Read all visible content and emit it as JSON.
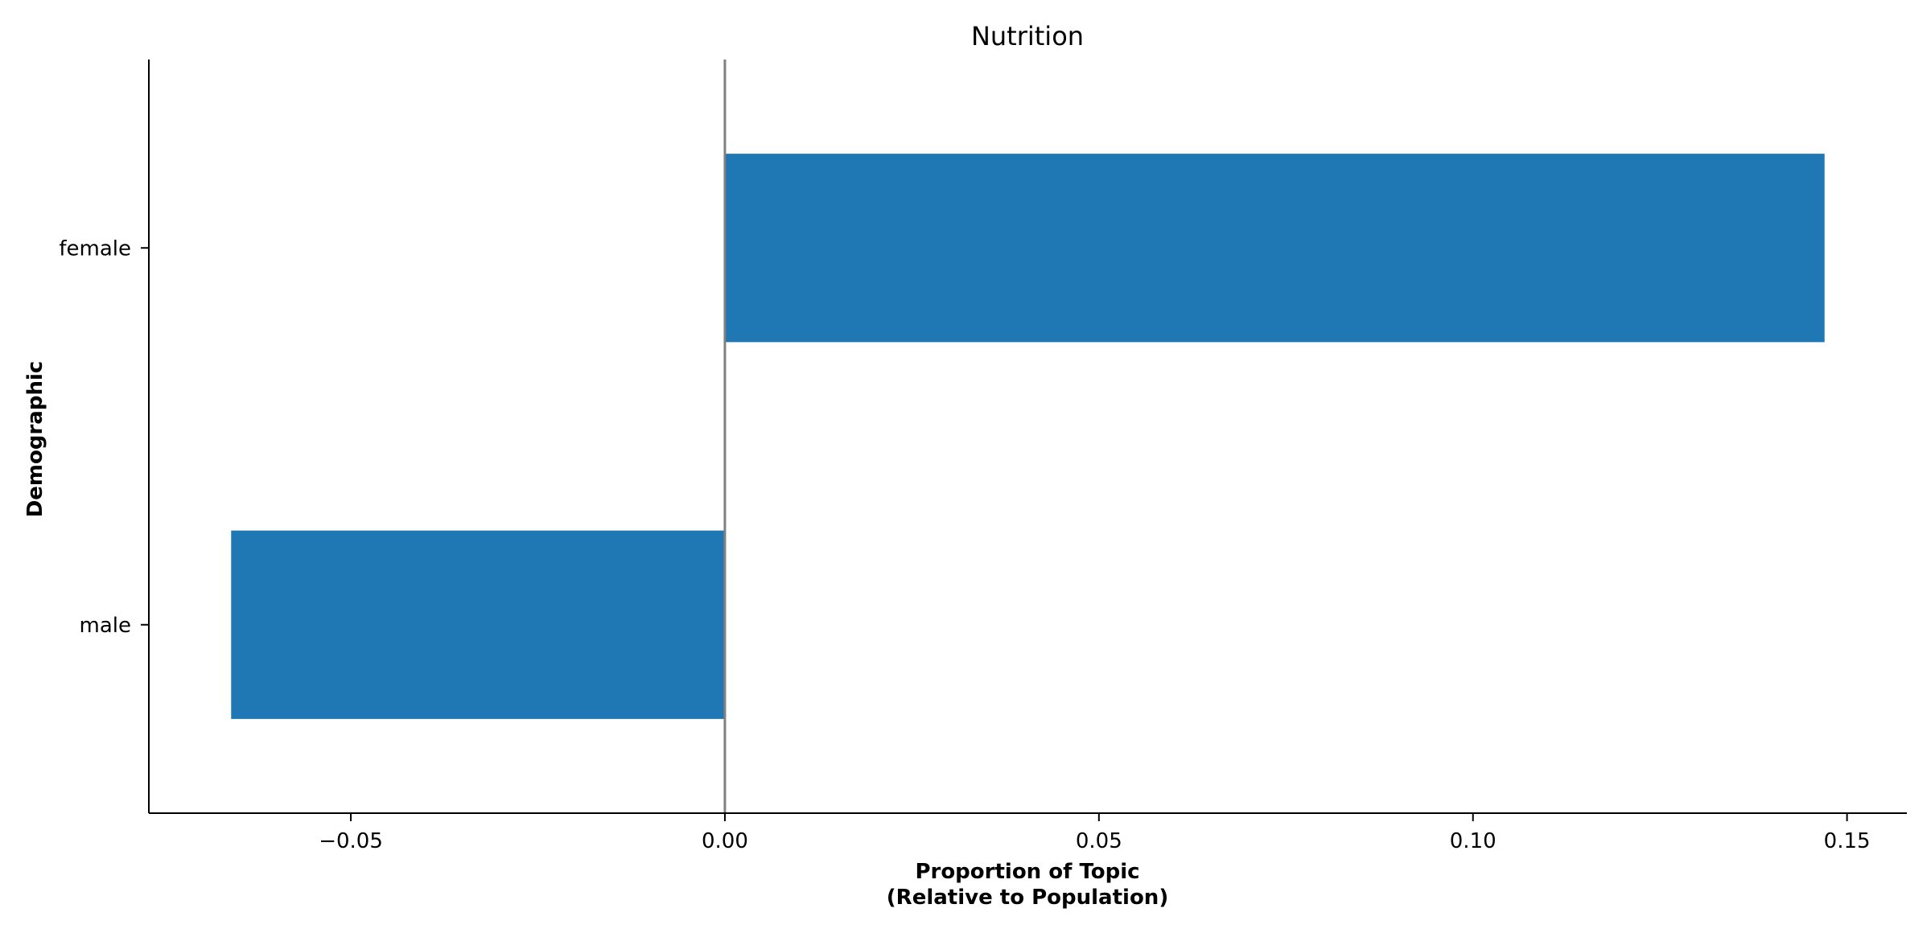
{
  "chart_data": {
    "type": "bar",
    "orientation": "horizontal",
    "title": "Nutrition",
    "xlabel_lines": [
      "Proportion of Topic",
      "(Relative to Population)"
    ],
    "ylabel": "Demographic",
    "categories": [
      "female",
      "male"
    ],
    "values": [
      0.147,
      -0.066
    ],
    "xlim": [
      -0.077,
      0.158
    ],
    "xticks": [
      -0.05,
      0.0,
      0.05,
      0.1,
      0.15
    ],
    "xtick_labels": [
      "−0.05",
      "0.00",
      "0.05",
      "0.10",
      "0.15"
    ],
    "reference_line_at": 0,
    "bar_color": "#1f77b4",
    "reference_line_color": "#808080",
    "grid": false,
    "legend": "none"
  }
}
